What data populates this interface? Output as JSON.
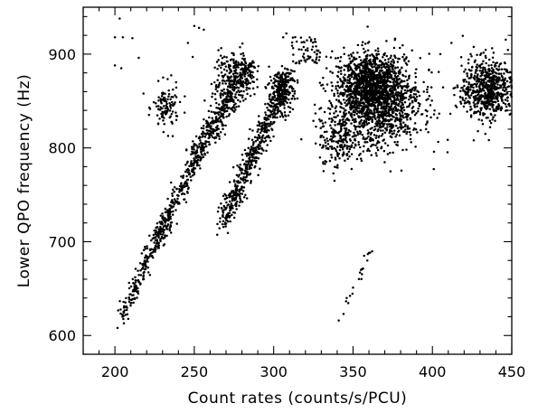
{
  "chart_data": {
    "type": "scatter",
    "title": "",
    "xlabel": "Count rates (counts/s/PCU)",
    "ylabel": "Lower QPO frequency (Hz)",
    "xlim": [
      180,
      450
    ],
    "ylim": [
      580,
      950
    ],
    "x_ticks": [
      200,
      250,
      300,
      350,
      400,
      450
    ],
    "y_ticks": [
      600,
      700,
      800,
      900
    ],
    "x_minor_step": 10,
    "y_minor_step": 20,
    "grid": false,
    "legend": "none",
    "marker_color": "#000000",
    "marker": "filled dot",
    "clusters": [
      {
        "id": "branch-1-lower",
        "n": 220,
        "x_range": [
          204,
          235
        ],
        "y_range": [
          620,
          730
        ],
        "shape": "diagonal band",
        "spread_x": 4,
        "spread_y": 10
      },
      {
        "id": "branch-1-middle",
        "n": 200,
        "x_range": [
          225,
          252
        ],
        "y_range": [
          700,
          790
        ],
        "shape": "diagonal band",
        "spread_x": 4,
        "spread_y": 10
      },
      {
        "id": "branch-1-upper",
        "n": 420,
        "x_range": [
          250,
          285
        ],
        "y_range": [
          790,
          890
        ],
        "shape": "diagonal band",
        "spread_x": 6,
        "spread_y": 14
      },
      {
        "id": "branch-1-top",
        "n": 180,
        "x_range": [
          262,
          285
        ],
        "y_range": [
          845,
          905
        ],
        "shape": "blob",
        "spread_x": 6,
        "spread_y": 14
      },
      {
        "id": "knot-230",
        "n": 110,
        "x_range": [
          224,
          240
        ],
        "y_range": [
          815,
          870
        ],
        "shape": "blob",
        "spread_x": 4,
        "spread_y": 12
      },
      {
        "id": "branch-2",
        "n": 560,
        "x_range": [
          268,
          310
        ],
        "y_range": [
          720,
          880
        ],
        "shape": "diagonal band",
        "spread_x": 5,
        "spread_y": 14
      },
      {
        "id": "branch-2-top",
        "n": 160,
        "x_range": [
          298,
          312
        ],
        "y_range": [
          830,
          890
        ],
        "shape": "blob",
        "spread_x": 4,
        "spread_y": 12
      },
      {
        "id": "cloud-main",
        "n": 1500,
        "x_range": [
          330,
          400
        ],
        "y_range": [
          780,
          920
        ],
        "shape": "blob",
        "spread_x": 14,
        "spread_y": 24
      },
      {
        "id": "cloud-dense-core",
        "n": 500,
        "x_range": [
          345,
          375
        ],
        "y_range": [
          840,
          900
        ],
        "shape": "blob",
        "spread_x": 7,
        "spread_y": 14
      },
      {
        "id": "cloud-left-tail",
        "n": 160,
        "x_range": [
          330,
          352
        ],
        "y_range": [
          775,
          840
        ],
        "shape": "blob",
        "spread_x": 6,
        "spread_y": 16
      },
      {
        "id": "cloud-right",
        "n": 650,
        "x_range": [
          420,
          450
        ],
        "y_range": [
          820,
          905
        ],
        "shape": "blob",
        "spread_x": 8,
        "spread_y": 16
      },
      {
        "id": "upper-stray",
        "n": 60,
        "x_range": [
          310,
          330
        ],
        "y_range": [
          890,
          920
        ],
        "shape": "scatter",
        "spread_x": 6,
        "spread_y": 8
      },
      {
        "id": "lower-stray",
        "n": 14,
        "x_range": [
          340,
          362
        ],
        "y_range": [
          615,
          690
        ],
        "shape": "diagonal band",
        "spread_x": 2,
        "spread_y": 4
      }
    ],
    "outlier_points": [
      {
        "x": 200,
        "y": 918
      },
      {
        "x": 203,
        "y": 938
      },
      {
        "x": 205,
        "y": 918
      },
      {
        "x": 211,
        "y": 917
      },
      {
        "x": 200,
        "y": 888
      },
      {
        "x": 204,
        "y": 885
      },
      {
        "x": 215,
        "y": 896
      },
      {
        "x": 218,
        "y": 858
      },
      {
        "x": 246,
        "y": 912
      },
      {
        "x": 250,
        "y": 930
      },
      {
        "x": 253,
        "y": 928
      },
      {
        "x": 256,
        "y": 926
      },
      {
        "x": 249,
        "y": 897
      },
      {
        "x": 244,
        "y": 855
      },
      {
        "x": 241,
        "y": 849
      },
      {
        "x": 308,
        "y": 922
      },
      {
        "x": 306,
        "y": 918
      },
      {
        "x": 326,
        "y": 916
      },
      {
        "x": 319,
        "y": 913
      },
      {
        "x": 412,
        "y": 912
      },
      {
        "x": 405,
        "y": 900
      },
      {
        "x": 396,
        "y": 820
      },
      {
        "x": 401,
        "y": 796
      },
      {
        "x": 341,
        "y": 616
      },
      {
        "x": 344,
        "y": 623
      },
      {
        "x": 346,
        "y": 640
      },
      {
        "x": 350,
        "y": 651
      },
      {
        "x": 355,
        "y": 670
      },
      {
        "x": 357,
        "y": 685
      },
      {
        "x": 360,
        "y": 688
      },
      {
        "x": 359,
        "y": 680
      }
    ]
  }
}
